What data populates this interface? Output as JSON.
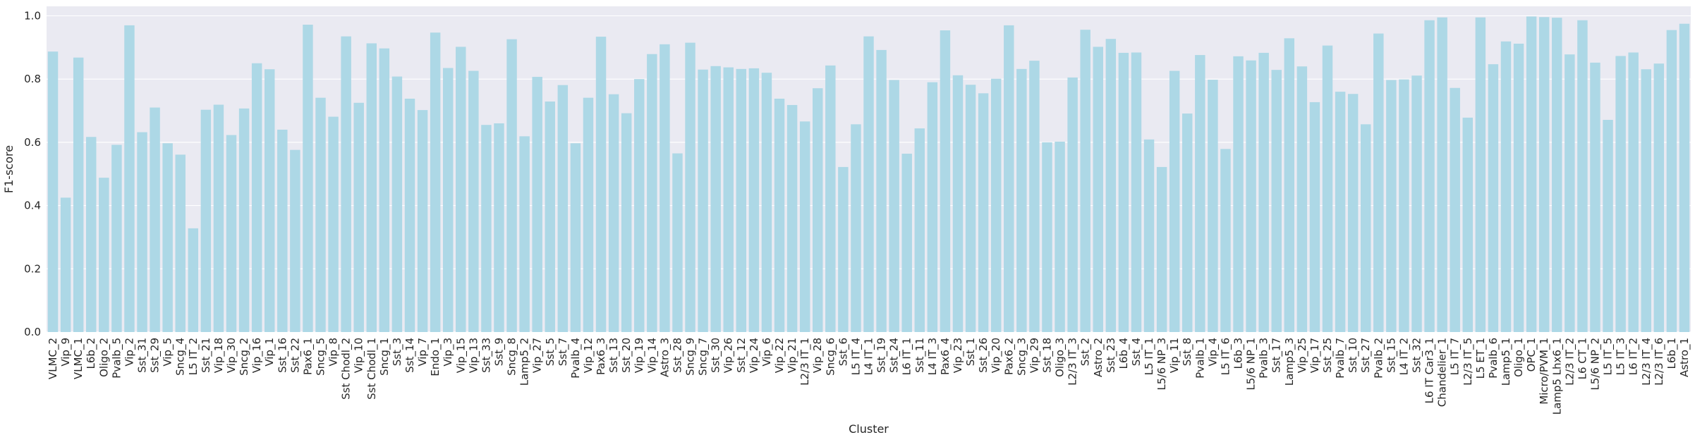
{
  "chart_data": {
    "type": "bar",
    "xlabel": "Cluster",
    "ylabel": "F1-score",
    "ylim": [
      0,
      1.03
    ],
    "yticks": [
      "0.0",
      "0.2",
      "0.4",
      "0.6",
      "0.8",
      "1.0"
    ],
    "grid": true,
    "colors": {
      "bar": "#ADD8E6",
      "background": "#EAEAF2",
      "grid": "#FFFFFF",
      "text": "#262626"
    },
    "categories": [
      "VLMC_2",
      "Vip_9",
      "VLMC_1",
      "L6b_2",
      "Oligo_2",
      "Pvalb_5",
      "Vip_2",
      "Sst_31",
      "Sst_29",
      "Vip_5",
      "Sncg_4",
      "L5 IT_2",
      "Sst_21",
      "Vip_18",
      "Vip_30",
      "Sncg_2",
      "Vip_16",
      "Vip_1",
      "Sst_16",
      "Sst_22",
      "Pax6_1",
      "Sncg_5",
      "Vip_8",
      "Sst Chodl_2",
      "Vip_10",
      "Sst Chodl_1",
      "Sncg_1",
      "Sst_3",
      "Sst_14",
      "Vip_7",
      "Endo_1",
      "Vip_3",
      "Vip_15",
      "Vip_13",
      "Sst_33",
      "Sst_9",
      "Sncg_8",
      "Lamp5_2",
      "Vip_27",
      "Sst_5",
      "Sst_7",
      "Pvalb_4",
      "Vip_12",
      "Pax6_3",
      "Sst_13",
      "Sst_20",
      "Vip_19",
      "Vip_14",
      "Astro_3",
      "Sst_28",
      "Sncg_9",
      "Sncg_7",
      "Sst_30",
      "Vip_26",
      "Sst_12",
      "Vip_24",
      "Vip_6",
      "Vip_22",
      "Vip_21",
      "L2/3 IT_1",
      "Vip_28",
      "Sncg_6",
      "Sst_6",
      "L5 IT_4",
      "L4 IT_1",
      "Sst_19",
      "Sst_24",
      "L6 IT_1",
      "Sst_11",
      "L4 IT_3",
      "Pax6_4",
      "Vip_23",
      "Sst_1",
      "Sst_26",
      "Vip_20",
      "Pax6_2",
      "Sncg_3",
      "Vip_29",
      "Sst_18",
      "Oligo_3",
      "L2/3 IT_3",
      "Sst_2",
      "Astro_2",
      "Sst_23",
      "L6b_4",
      "Sst_4",
      "L5 IT_1",
      "L5/6 NP_3",
      "Vip_11",
      "Sst_8",
      "Pvalb_1",
      "Vip_4",
      "L5 IT_6",
      "L6b_3",
      "L5/6 NP_1",
      "Pvalb_3",
      "Sst_17",
      "Lamp5_3",
      "Vip_25",
      "Vip_17",
      "Sst_25",
      "Pvalb_7",
      "Sst_10",
      "Sst_27",
      "Pvalb_2",
      "Sst_15",
      "L4 IT_2",
      "Sst_32",
      "L6 IT Car3_1",
      "Chandelier_1",
      "L5 IT_7",
      "L2/3 IT_5",
      "L5 ET_1",
      "Pvalb_6",
      "Lamp5_1",
      "Oligo_1",
      "OPC_1",
      "Micro/PVM_1",
      "Lamp5 Lhx6_1",
      "L2/3 IT_2",
      "L6 CT_1",
      "L5/6 NP_2",
      "L5 IT_5",
      "L5 IT_3",
      "L6 IT_2",
      "L2/3 IT_4",
      "L2/3 IT_6",
      "L6b_1",
      "Astro_1"
    ],
    "values": [
      0.887,
      0.425,
      0.868,
      0.617,
      0.488,
      0.592,
      0.97,
      0.632,
      0.71,
      0.597,
      0.561,
      0.328,
      0.703,
      0.719,
      0.623,
      0.707,
      0.85,
      0.831,
      0.64,
      0.576,
      0.972,
      0.741,
      0.681,
      0.935,
      0.725,
      0.913,
      0.897,
      0.808,
      0.738,
      0.702,
      0.947,
      0.835,
      0.902,
      0.826,
      0.655,
      0.66,
      0.926,
      0.619,
      0.807,
      0.729,
      0.781,
      0.597,
      0.741,
      0.934,
      0.752,
      0.692,
      0.8,
      0.879,
      0.91,
      0.565,
      0.915,
      0.83,
      0.841,
      0.837,
      0.832,
      0.834,
      0.82,
      0.738,
      0.718,
      0.666,
      0.771,
      0.843,
      0.522,
      0.657,
      0.935,
      0.892,
      0.797,
      0.564,
      0.644,
      0.79,
      0.954,
      0.812,
      0.782,
      0.755,
      0.801,
      0.97,
      0.832,
      0.858,
      0.6,
      0.602,
      0.805,
      0.956,
      0.902,
      0.927,
      0.883,
      0.884,
      0.609,
      0.522,
      0.826,
      0.691,
      0.876,
      0.798,
      0.579,
      0.872,
      0.859,
      0.883,
      0.829,
      0.929,
      0.84,
      0.727,
      0.906,
      0.76,
      0.753,
      0.657,
      0.944,
      0.797,
      0.799,
      0.811,
      0.986,
      0.995,
      0.772,
      0.678,
      0.995,
      0.847,
      0.919,
      0.912,
      0.998,
      0.996,
      0.994,
      0.878,
      0.986,
      0.852,
      0.671,
      0.873,
      0.884,
      0.831,
      0.849,
      0.955,
      0.975
    ]
  }
}
